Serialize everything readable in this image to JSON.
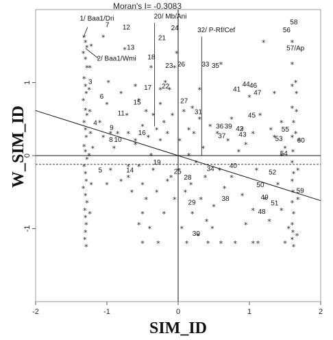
{
  "chart_data": {
    "type": "scatter",
    "title": "Moran's I= -0.3083",
    "xlabel": "SIM_ID",
    "ylabel": "W_SIM_ID",
    "xlim": [
      -2,
      2
    ],
    "ylim": [
      -2,
      2
    ],
    "x_ticks": [
      "-2",
      "-1",
      "0",
      "1",
      "2"
    ],
    "y_ticks": [
      "-1",
      "0",
      "1"
    ],
    "marker": "*",
    "regression": {
      "slope": -0.3083,
      "intercept": 0
    },
    "mean_line_y": -0.12,
    "points": [
      [
        -1.32,
        1.62
      ],
      [
        -1.3,
        1.55
      ],
      [
        -1.28,
        1.48
      ],
      [
        -1.33,
        1.4
      ],
      [
        -1.3,
        1.32
      ],
      [
        -1.28,
        1.2
      ],
      [
        -1.32,
        1.05
      ],
      [
        -1.3,
        0.95
      ],
      [
        -1.29,
        0.85
      ],
      [
        -1.33,
        0.75
      ],
      [
        -1.3,
        0.62
      ],
      [
        -1.28,
        0.55
      ],
      [
        -1.32,
        0.45
      ],
      [
        -1.3,
        0.35
      ],
      [
        -1.29,
        0.25
      ],
      [
        -1.32,
        0.12
      ],
      [
        -1.3,
        0.05
      ],
      [
        -1.28,
        -0.05
      ],
      [
        -1.32,
        -0.15
      ],
      [
        -1.3,
        -0.25
      ],
      [
        -1.29,
        -0.35
      ],
      [
        -1.33,
        -0.45
      ],
      [
        -1.3,
        -0.55
      ],
      [
        -1.28,
        -0.65
      ],
      [
        -1.31,
        -0.75
      ],
      [
        -1.3,
        -0.85
      ],
      [
        -1.29,
        -0.95
      ],
      [
        -1.3,
        -1.05
      ],
      [
        -1.31,
        -1.15
      ],
      [
        -1.29,
        -1.25
      ],
      [
        -1.24,
        1.2
      ],
      [
        -1.25,
        0.9
      ],
      [
        -1.24,
        0.6
      ],
      [
        -1.23,
        0.3
      ],
      [
        -1.25,
        0.0
      ],
      [
        -1.22,
        -0.4
      ],
      [
        -1.24,
        -0.8
      ],
      [
        -1.22,
        1.5
      ],
      [
        -1.2,
        0.1
      ],
      [
        -1.05,
        1.62
      ],
      [
        -1.05,
        0.25
      ],
      [
        -1.1,
        0.45
      ],
      [
        -1.0,
        0.7
      ],
      [
        -0.95,
        0.3
      ],
      [
        -0.9,
        0.1
      ],
      [
        -0.95,
        -0.2
      ],
      [
        -1.0,
        -0.4
      ],
      [
        -0.85,
        0.3
      ],
      [
        -0.8,
        -0.35
      ],
      [
        -0.75,
        1.45
      ],
      [
        -0.72,
        0.55
      ],
      [
        -0.7,
        0.3
      ],
      [
        -0.7,
        -0.3
      ],
      [
        -0.65,
        -0.5
      ],
      [
        -0.6,
        0.95
      ],
      [
        -0.6,
        0.2
      ],
      [
        -0.55,
        0.75
      ],
      [
        -0.55,
        -0.15
      ],
      [
        -0.5,
        0.4
      ],
      [
        -0.5,
        -0.4
      ],
      [
        -0.5,
        -0.8
      ],
      [
        -0.5,
        -1.2
      ],
      [
        -0.45,
        0.6
      ],
      [
        -0.45,
        -0.6
      ],
      [
        -0.42,
        0.25
      ],
      [
        -0.4,
        -1.0
      ],
      [
        -0.38,
        1.2
      ],
      [
        -0.35,
        0.55
      ],
      [
        -0.35,
        -0.2
      ],
      [
        -0.3,
        0.35
      ],
      [
        -0.3,
        -0.5
      ],
      [
        -0.28,
        -1.2
      ],
      [
        -0.25,
        0.7
      ],
      [
        -0.25,
        0.2
      ],
      [
        -0.2,
        0.45
      ],
      [
        -0.2,
        -0.8
      ],
      [
        -0.18,
        1.0
      ],
      [
        -0.15,
        0.3
      ],
      [
        -0.12,
        0.9
      ],
      [
        -0.1,
        -0.3
      ],
      [
        -0.08,
        0.55
      ],
      [
        -0.05,
        -0.6
      ],
      [
        -0.02,
        1.4
      ],
      [
        0.0,
        -0.2
      ],
      [
        0.02,
        0.2
      ],
      [
        0.05,
        -1.0
      ],
      [
        0.08,
        0.6
      ],
      [
        0.1,
        -0.5
      ],
      [
        0.12,
        -1.2
      ],
      [
        0.15,
        0.0
      ],
      [
        0.18,
        -0.4
      ],
      [
        0.2,
        -0.8
      ],
      [
        0.22,
        0.3
      ],
      [
        0.25,
        -0.1
      ],
      [
        0.28,
        -1.1
      ],
      [
        0.3,
        0.5
      ],
      [
        0.32,
        -0.6
      ],
      [
        0.35,
        0.1
      ],
      [
        0.38,
        -0.3
      ],
      [
        0.4,
        -0.9
      ],
      [
        0.42,
        -1.2
      ],
      [
        0.45,
        0.4
      ],
      [
        0.5,
        -0.7
      ],
      [
        0.55,
        0.3
      ],
      [
        0.58,
        -0.2
      ],
      [
        0.6,
        -1.2
      ],
      [
        0.65,
        -0.45
      ],
      [
        0.7,
        0.2
      ],
      [
        0.75,
        -0.3
      ],
      [
        0.8,
        -1.2
      ],
      [
        0.85,
        0.05
      ],
      [
        0.9,
        0.35
      ],
      [
        0.95,
        0.15
      ],
      [
        1.0,
        0.8
      ],
      [
        1.05,
        0.3
      ],
      [
        1.1,
        -0.2
      ],
      [
        1.12,
        -1.2
      ],
      [
        1.15,
        0.55
      ],
      [
        1.2,
        1.55
      ],
      [
        1.22,
        -0.6
      ],
      [
        1.28,
        -0.9
      ],
      [
        1.35,
        0.25
      ],
      [
        1.4,
        -0.4
      ],
      [
        1.45,
        0.0
      ],
      [
        1.5,
        0.1
      ],
      [
        1.55,
        -1.0
      ],
      [
        1.6,
        1.55
      ],
      [
        1.6,
        1.25
      ],
      [
        1.6,
        0.95
      ],
      [
        1.6,
        0.65
      ],
      [
        1.62,
        0.45
      ],
      [
        1.6,
        0.25
      ],
      [
        1.61,
        0.05
      ],
      [
        1.6,
        -0.1
      ],
      [
        1.62,
        -0.25
      ],
      [
        1.6,
        -0.35
      ],
      [
        1.61,
        -0.5
      ],
      [
        1.6,
        -0.65
      ],
      [
        1.62,
        -0.8
      ],
      [
        1.6,
        -0.95
      ],
      [
        1.61,
        -1.05
      ],
      [
        1.6,
        -1.15
      ],
      [
        1.62,
        -1.25
      ],
      [
        1.65,
        0.3
      ],
      [
        1.68,
        -0.2
      ],
      [
        1.66,
        0.85
      ],
      [
        1.68,
        -0.6
      ],
      [
        1.66,
        0.6
      ],
      [
        1.7,
        0.2
      ],
      [
        1.65,
        1.0
      ],
      [
        1.67,
        -1.1
      ],
      [
        0.6,
        1.25
      ],
      [
        0.3,
        0.9
      ],
      [
        -0.05,
        1.2
      ],
      [
        -0.25,
        0.9
      ],
      [
        -0.6,
        0.15
      ],
      [
        -0.55,
        -0.95
      ],
      [
        -0.8,
        0.85
      ],
      [
        -0.15,
        -0.35
      ],
      [
        0.2,
        0.65
      ],
      [
        0.75,
        0.5
      ],
      [
        1.35,
        0.85
      ],
      [
        1.45,
        0.45
      ],
      [
        0.9,
        -0.55
      ],
      [
        0.15,
        0.35
      ],
      [
        -0.38,
        0.0
      ],
      [
        -0.7,
        -0.15
      ],
      [
        0.48,
        -1.0
      ],
      [
        1.05,
        -0.75
      ],
      [
        -0.98,
        1.0
      ],
      [
        1.3,
        0.35
      ],
      [
        1.5,
        -1.2
      ],
      [
        1.05,
        -1.2
      ],
      [
        0.95,
        -0.95
      ],
      [
        1.45,
        -0.75
      ]
    ],
    "annotations": [
      {
        "text": "1/ Baa1/Dri",
        "x": -1.38,
        "y": 1.85
      },
      {
        "text": "7",
        "x": -1.02,
        "y": 1.76
      },
      {
        "text": "12",
        "x": -0.78,
        "y": 1.73
      },
      {
        "text": "13",
        "x": -0.72,
        "y": 1.45
      },
      {
        "text": "2/ Baa1/Wmi",
        "x": -1.14,
        "y": 1.3
      },
      {
        "text": "20/ Mb/Ani",
        "x": -0.34,
        "y": 1.88
      },
      {
        "text": "24",
        "x": -0.1,
        "y": 1.72
      },
      {
        "text": "21",
        "x": -0.28,
        "y": 1.58
      },
      {
        "text": "32/ P-Rf/Cef",
        "x": 0.27,
        "y": 1.69
      },
      {
        "text": "58",
        "x": 1.57,
        "y": 1.8
      },
      {
        "text": "56",
        "x": 1.47,
        "y": 1.69
      },
      {
        "text": "57/Ap",
        "x": 1.52,
        "y": 1.44
      },
      {
        "text": "18",
        "x": -0.43,
        "y": 1.32
      },
      {
        "text": "26",
        "x": -0.01,
        "y": 1.22
      },
      {
        "text": "23",
        "x": -0.18,
        "y": 1.2
      },
      {
        "text": "33",
        "x": 0.33,
        "y": 1.22
      },
      {
        "text": "35",
        "x": 0.47,
        "y": 1.2
      },
      {
        "text": "3",
        "x": -1.26,
        "y": 0.98
      },
      {
        "text": "22",
        "x": -0.23,
        "y": 0.92
      },
      {
        "text": "17",
        "x": -0.48,
        "y": 0.9
      },
      {
        "text": "44",
        "x": 0.9,
        "y": 0.95
      },
      {
        "text": "46",
        "x": 1.0,
        "y": 0.93
      },
      {
        "text": "41",
        "x": 0.77,
        "y": 0.88
      },
      {
        "text": "47",
        "x": 1.06,
        "y": 0.83
      },
      {
        "text": "6",
        "x": -1.1,
        "y": 0.78
      },
      {
        "text": "27",
        "x": 0.03,
        "y": 0.72
      },
      {
        "text": "15",
        "x": -0.63,
        "y": 0.7
      },
      {
        "text": "11",
        "x": -0.85,
        "y": 0.55
      },
      {
        "text": "31",
        "x": 0.23,
        "y": 0.57
      },
      {
        "text": "45",
        "x": 0.98,
        "y": 0.52
      },
      {
        "text": "4",
        "x": -1.19,
        "y": 0.42
      },
      {
        "text": "36",
        "x": 0.53,
        "y": 0.37
      },
      {
        "text": "39",
        "x": 0.65,
        "y": 0.37
      },
      {
        "text": "42",
        "x": 0.81,
        "y": 0.34
      },
      {
        "text": "55",
        "x": 1.45,
        "y": 0.33
      },
      {
        "text": "9",
        "x": -0.96,
        "y": 0.35
      },
      {
        "text": "16",
        "x": -0.56,
        "y": 0.28
      },
      {
        "text": "37",
        "x": 0.56,
        "y": 0.24
      },
      {
        "text": "8",
        "x": -0.97,
        "y": 0.19
      },
      {
        "text": "10",
        "x": -0.9,
        "y": 0.19
      },
      {
        "text": "53",
        "x": 1.36,
        "y": 0.2
      },
      {
        "text": "60",
        "x": 1.67,
        "y": 0.18
      },
      {
        "text": "43",
        "x": 0.85,
        "y": 0.26
      },
      {
        "text": "54",
        "x": 1.43,
        "y": 0.0
      },
      {
        "text": "19",
        "x": -0.35,
        "y": -0.12
      },
      {
        "text": "40",
        "x": 0.72,
        "y": -0.17
      },
      {
        "text": "5",
        "x": -1.12,
        "y": -0.23
      },
      {
        "text": "14",
        "x": -0.73,
        "y": -0.23
      },
      {
        "text": "25",
        "x": -0.06,
        "y": -0.25
      },
      {
        "text": "34",
        "x": 0.4,
        "y": -0.21
      },
      {
        "text": "52",
        "x": 1.27,
        "y": -0.26
      },
      {
        "text": "28",
        "x": 0.08,
        "y": -0.33
      },
      {
        "text": "50",
        "x": 1.1,
        "y": -0.43
      },
      {
        "text": "59",
        "x": 1.66,
        "y": -0.51
      },
      {
        "text": "49",
        "x": 1.16,
        "y": -0.6
      },
      {
        "text": "38",
        "x": 0.61,
        "y": -0.62
      },
      {
        "text": "51",
        "x": 1.3,
        "y": -0.68
      },
      {
        "text": "29",
        "x": 0.14,
        "y": -0.67
      },
      {
        "text": "48",
        "x": 1.12,
        "y": -0.8
      },
      {
        "text": "30",
        "x": 0.2,
        "y": -1.1
      }
    ]
  }
}
